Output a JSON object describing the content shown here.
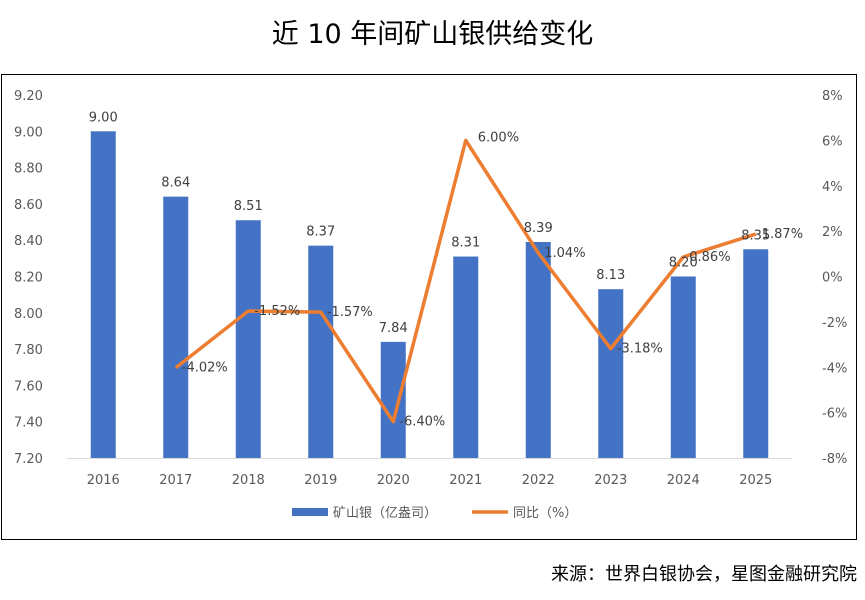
{
  "title": "近 10 年间矿山银供给变化",
  "source": "来源：世界白银协会，星图金融研究院",
  "chart_data": {
    "type": "bar",
    "categories": [
      "2016",
      "2017",
      "2018",
      "2019",
      "2020",
      "2021",
      "2022",
      "2023",
      "2024",
      "2025"
    ],
    "series": [
      {
        "name": "矿山银（亿盎司）",
        "type": "bar",
        "axis": "left",
        "color": "#4472C4",
        "values": [
          9.0,
          8.64,
          8.51,
          8.37,
          7.84,
          8.31,
          8.39,
          8.13,
          8.2,
          8.35
        ],
        "labels": [
          "9.00",
          "8.64",
          "8.51",
          "8.37",
          "7.84",
          "8.31",
          "8.39",
          "8.13",
          "8.20",
          "8.35"
        ]
      },
      {
        "name": "同比（%）",
        "type": "line",
        "axis": "right",
        "color": "#ED7D31",
        "values": [
          null,
          -4.02,
          -1.52,
          -1.57,
          -6.4,
          6.0,
          1.04,
          -3.18,
          0.86,
          1.87
        ],
        "labels": [
          "",
          "-4.02%",
          "-1.52%",
          "-1.57%",
          "-6.40%",
          "6.00%",
          "1.04%",
          "-3.18%",
          "0.86%",
          "1.87%"
        ]
      }
    ],
    "y_left": {
      "range": [
        7.2,
        9.2
      ],
      "ticks": [
        "7.20",
        "7.40",
        "7.60",
        "7.80",
        "8.00",
        "8.20",
        "8.40",
        "8.60",
        "8.80",
        "9.00",
        "9.20"
      ]
    },
    "y_right": {
      "range": [
        -8,
        8
      ],
      "ticks": [
        "-8%",
        "-6%",
        "-4%",
        "-2%",
        "0%",
        "2%",
        "4%",
        "6%",
        "8%"
      ]
    },
    "grid": false,
    "legend": "bottom"
  }
}
